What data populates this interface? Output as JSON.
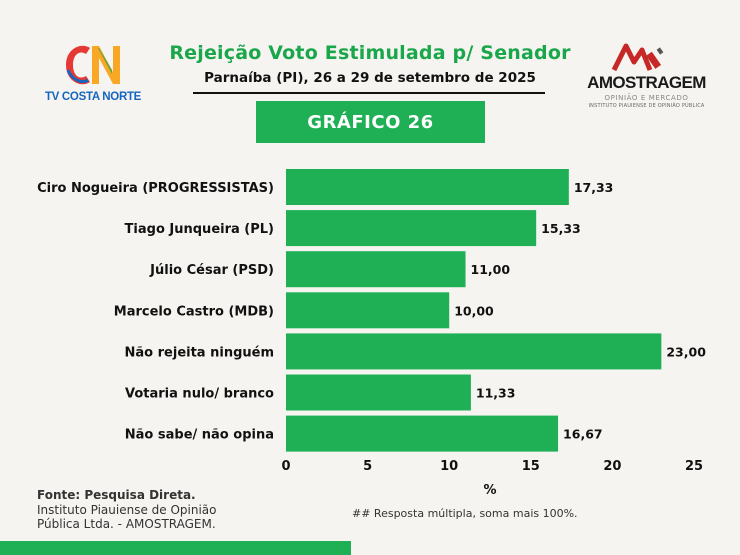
{
  "header": {
    "title": "Rejeição Voto Estimulada p/ Senador",
    "subtitle": "Parnaíba (PI), 26 a 29 de setembro de 2025",
    "badge": "GRÁFICO 26"
  },
  "logos": {
    "left_name": "TV COSTA NORTE",
    "right_name": "AMOSTRAGEM",
    "right_tagline": "OPINIÃO E MERCADO",
    "right_institute": "INSTITUTO PIAUIENSE DE OPINIÃO PÚBLICA"
  },
  "colors": {
    "bar": "#1fb056",
    "title": "#1aa64a",
    "logo_red": "#e53935",
    "logo_blue": "#1565c0"
  },
  "chart_data": {
    "type": "bar",
    "orientation": "horizontal",
    "categories": [
      "Ciro Nogueira (PROGRESSISTAS)",
      "Tiago Junqueira (PL)",
      "Júlio César (PSD)",
      "Marcelo Castro (MDB)",
      "Não rejeita ninguém",
      "Votaria nulo/ branco",
      "Não sabe/ não opina"
    ],
    "values": [
      17.33,
      15.33,
      11.0,
      10.0,
      23.0,
      11.33,
      16.67
    ],
    "value_labels": [
      "17,33",
      "15,33",
      "11,00",
      "10,00",
      "23,00",
      "11,33",
      "16,67"
    ],
    "xlim": [
      0,
      25
    ],
    "xticks": [
      "0",
      "5",
      "10",
      "15",
      "20",
      "25"
    ],
    "xlabel": "%",
    "grid": false
  },
  "footer": {
    "source_heading": "Fonte: Pesquisa Direta.",
    "source_line1": "Instituto Piauiense de Opinião",
    "source_line2": "Pública Ltda. - AMOSTRAGEM.",
    "note": "## Resposta múltipla, soma mais 100%."
  }
}
